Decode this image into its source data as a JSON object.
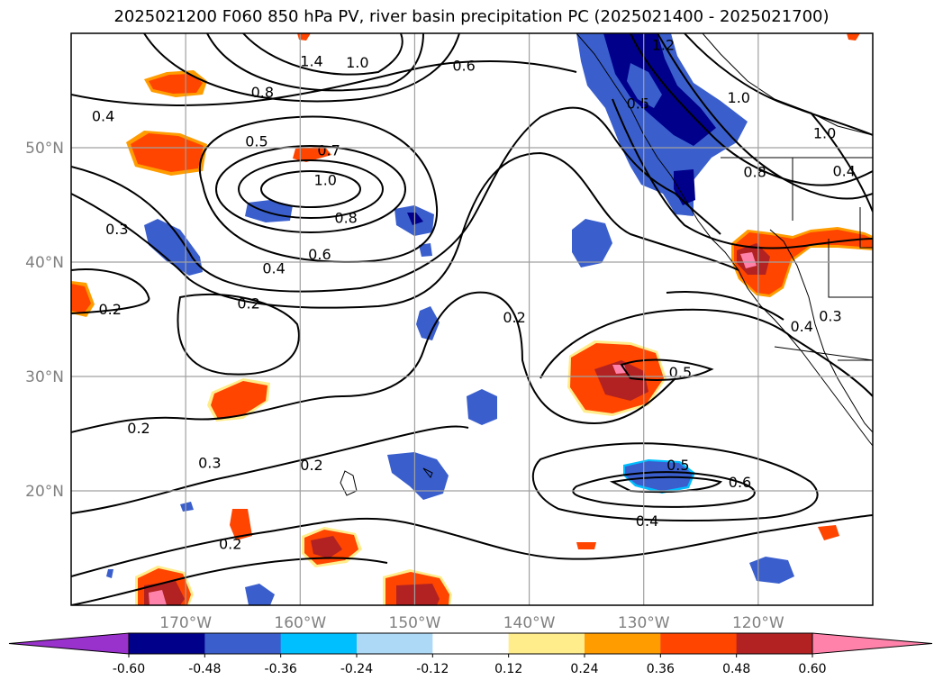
{
  "title": "2025021200 F060 850 hPa PV, river basin precipitation PC (2025021400 - 2025021700)",
  "map": {
    "lon_range": [
      -180,
      -110
    ],
    "lat_range": [
      10,
      60
    ],
    "lat_ticks": [
      {
        "value": 50,
        "label": "50°N"
      },
      {
        "value": 40,
        "label": "40°N"
      },
      {
        "value": 30,
        "label": "30°N"
      },
      {
        "value": 20,
        "label": "20°N"
      }
    ],
    "lon_ticks": [
      {
        "value": -170,
        "label": "170°W"
      },
      {
        "value": -160,
        "label": "160°W"
      },
      {
        "value": -150,
        "label": "150°W"
      },
      {
        "value": -140,
        "label": "140°W"
      },
      {
        "value": -130,
        "label": "130°W"
      },
      {
        "value": -120,
        "label": "120°W"
      }
    ],
    "grid": true,
    "contour_labels": [
      {
        "text": "1.2",
        "lon": -128.3,
        "lat": 59.0
      },
      {
        "text": "1.4",
        "lon": -159.0,
        "lat": 57.6
      },
      {
        "text": "1.0",
        "lon": -155.0,
        "lat": 57.5
      },
      {
        "text": "0.6",
        "lon": -145.7,
        "lat": 57.2
      },
      {
        "text": "0.8",
        "lon": -163.3,
        "lat": 54.9
      },
      {
        "text": "0.4",
        "lon": -177.2,
        "lat": 52.8
      },
      {
        "text": "0.5",
        "lon": -163.8,
        "lat": 50.6
      },
      {
        "text": "0.7",
        "lon": -157.5,
        "lat": 49.8
      },
      {
        "text": "1.0",
        "lon": -157.8,
        "lat": 47.2
      },
      {
        "text": "0.8",
        "lon": -156.0,
        "lat": 43.9
      },
      {
        "text": "0.6",
        "lon": -158.3,
        "lat": 40.7
      },
      {
        "text": "0.3",
        "lon": -176.0,
        "lat": 42.9
      },
      {
        "text": "0.4",
        "lon": -162.3,
        "lat": 39.5
      },
      {
        "text": "0.2",
        "lon": -164.5,
        "lat": 36.4
      },
      {
        "text": "0.2",
        "lon": -176.6,
        "lat": 35.9
      },
      {
        "text": "0.2",
        "lon": -141.3,
        "lat": 35.2
      },
      {
        "text": "0.5",
        "lon": -126.8,
        "lat": 30.4
      },
      {
        "text": "0.5",
        "lon": -130.5,
        "lat": 53.9
      },
      {
        "text": "1.0",
        "lon": -121.7,
        "lat": 54.4
      },
      {
        "text": "0.8",
        "lon": -120.3,
        "lat": 47.9
      },
      {
        "text": "1.0",
        "lon": -114.2,
        "lat": 51.3
      },
      {
        "text": "0.4",
        "lon": -112.5,
        "lat": 48.0
      },
      {
        "text": "0.4",
        "lon": -116.2,
        "lat": 34.4
      },
      {
        "text": "0.3",
        "lon": -113.7,
        "lat": 35.3
      },
      {
        "text": "0.2",
        "lon": -174.1,
        "lat": 25.5
      },
      {
        "text": "0.3",
        "lon": -167.9,
        "lat": 22.5
      },
      {
        "text": "0.2",
        "lon": -159.0,
        "lat": 22.3
      },
      {
        "text": "0.5",
        "lon": -127.0,
        "lat": 22.3
      },
      {
        "text": "0.6",
        "lon": -121.6,
        "lat": 20.8
      },
      {
        "text": "0.4",
        "lon": -129.7,
        "lat": 17.4
      },
      {
        "text": "0.2",
        "lon": -166.1,
        "lat": 15.4
      }
    ]
  },
  "colorbar": {
    "levels": [
      "-0.60",
      "-0.48",
      "-0.36",
      "-0.24",
      "-0.12",
      "0.12",
      "0.24",
      "0.36",
      "0.48",
      "0.60"
    ],
    "colors": [
      "#9932cc",
      "#00008b",
      "#3a5fcd",
      "#00bfff",
      "#add8f6",
      "#ffffff",
      "#ffec8b",
      "#ff9c00",
      "#ff4500",
      "#b22222",
      "#ff82ab"
    ]
  }
}
